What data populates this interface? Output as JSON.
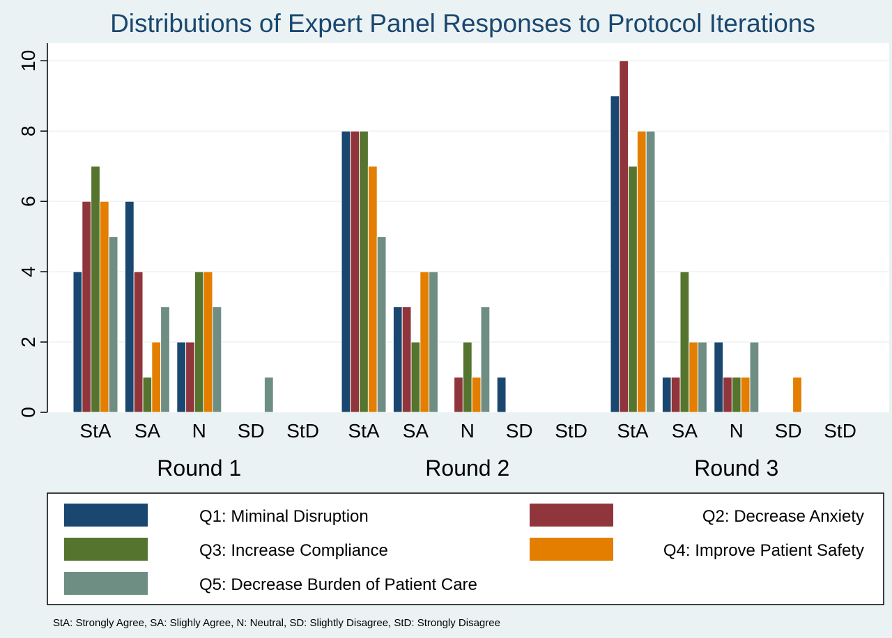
{
  "chart_data": {
    "type": "bar",
    "title": "Distributions of Expert Panel Responses to Protocol Iterations",
    "ylim": [
      0,
      10.5
    ],
    "yticks": [
      0,
      2,
      4,
      6,
      8,
      10
    ],
    "grid": true,
    "legend_position": "bottom",
    "groups": [
      {
        "label": "Round 1",
        "categories": [
          "StA",
          "SA",
          "N",
          "SD",
          "StD"
        ],
        "series": [
          {
            "name": "Q1: Miminal Disruption",
            "values": [
              4,
              6,
              2,
              0,
              0
            ]
          },
          {
            "name": "Q2: Decrease Anxiety",
            "values": [
              6,
              4,
              2,
              0,
              0
            ]
          },
          {
            "name": "Q3: Increase Compliance",
            "values": [
              7,
              1,
              4,
              0,
              0
            ]
          },
          {
            "name": "Q4: Improve Patient Safety",
            "values": [
              6,
              2,
              4,
              0,
              0
            ]
          },
          {
            "name": "Q5: Decrease Burden of Patient Care",
            "values": [
              5,
              3,
              3,
              1,
              0
            ]
          }
        ]
      },
      {
        "label": "Round 2",
        "categories": [
          "StA",
          "SA",
          "N",
          "SD",
          "StD"
        ],
        "series": [
          {
            "name": "Q1: Miminal Disruption",
            "values": [
              8,
              3,
              0,
              1,
              0
            ]
          },
          {
            "name": "Q2: Decrease Anxiety",
            "values": [
              8,
              3,
              1,
              0,
              0
            ]
          },
          {
            "name": "Q3: Increase Compliance",
            "values": [
              8,
              2,
              2,
              0,
              0
            ]
          },
          {
            "name": "Q4: Improve Patient Safety",
            "values": [
              7,
              4,
              1,
              0,
              0
            ]
          },
          {
            "name": "Q5: Decrease Burden of Patient Care",
            "values": [
              5,
              4,
              3,
              0,
              0
            ]
          }
        ]
      },
      {
        "label": "Round 3",
        "categories": [
          "StA",
          "SA",
          "N",
          "SD",
          "StD"
        ],
        "series": [
          {
            "name": "Q1: Miminal Disruption",
            "values": [
              9,
              1,
              2,
              0,
              0
            ]
          },
          {
            "name": "Q2: Decrease Anxiety",
            "values": [
              10,
              1,
              1,
              0,
              0
            ]
          },
          {
            "name": "Q3: Increase Compliance",
            "values": [
              7,
              4,
              1,
              0,
              0
            ]
          },
          {
            "name": "Q4: Improve Patient Safety",
            "values": [
              8,
              2,
              1,
              1,
              0
            ]
          },
          {
            "name": "Q5: Decrease Burden of Patient Care",
            "values": [
              8,
              2,
              2,
              0,
              0
            ]
          }
        ]
      }
    ],
    "legend": [
      {
        "name": "Q1: Miminal Disruption",
        "color": "#1a476f"
      },
      {
        "name": "Q2: Decrease Anxiety",
        "color": "#90353b"
      },
      {
        "name": "Q3: Increase Compliance",
        "color": "#55752f"
      },
      {
        "name": "Q4: Improve Patient Safety",
        "color": "#e37e00"
      },
      {
        "name": "Q5: Decrease Burden of Patient Care",
        "color": "#6e8e84"
      }
    ],
    "note": "StA: Strongly Agree, SA: Slighly Agree, N: Neutral, SD: Slightly Disagree, StD: Strongly Disagree"
  }
}
